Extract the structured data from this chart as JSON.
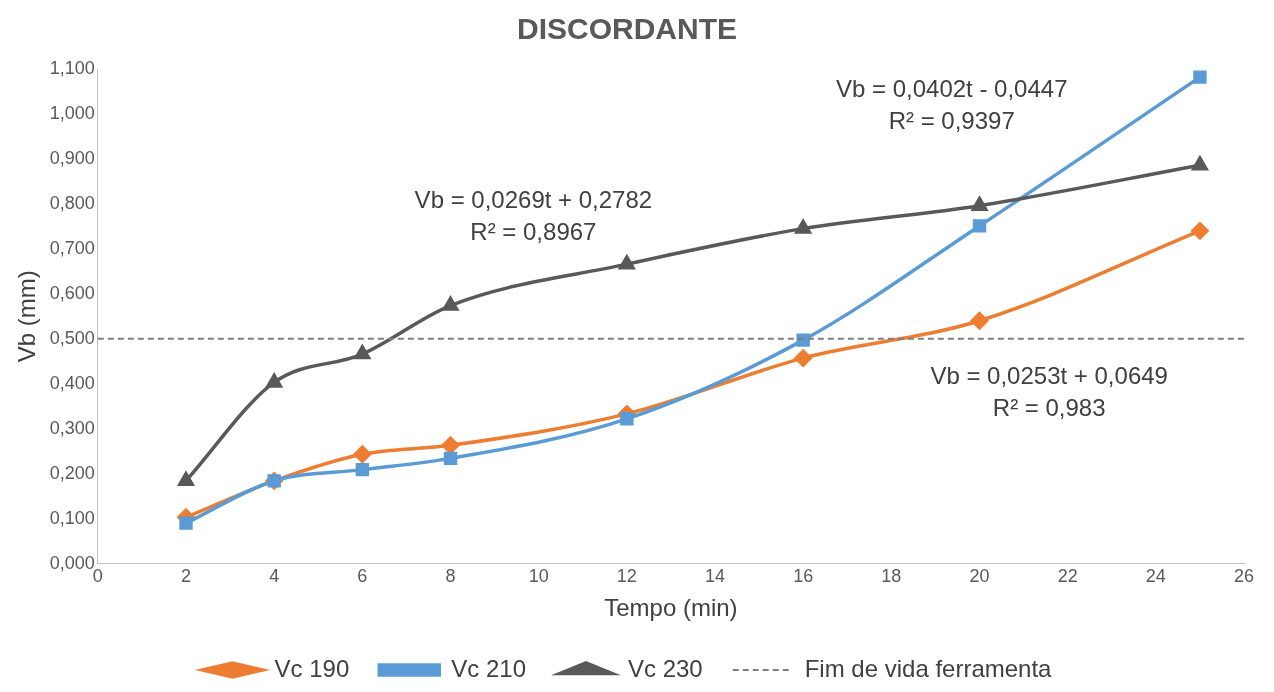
{
  "chart_data": {
    "type": "line",
    "title": "DISCORDANTE",
    "xlabel": "Tempo (min)",
    "ylabel": "Vb (mm)",
    "x": [
      2,
      4,
      6,
      8,
      12,
      16,
      20,
      25
    ],
    "series": [
      {
        "name": "Vc 190",
        "color": "#ed7d31",
        "marker": "diamond",
        "values": [
          0.103,
          0.184,
          0.243,
          0.263,
          0.333,
          0.457,
          0.54,
          0.74
        ]
      },
      {
        "name": "Vc 210",
        "color": "#5b9bd5",
        "marker": "square",
        "values": [
          0.09,
          0.184,
          0.209,
          0.234,
          0.322,
          0.497,
          0.751,
          1.082
        ]
      },
      {
        "name": "Vc 230",
        "color": "#595959",
        "marker": "triangle",
        "values": [
          0.184,
          0.403,
          0.466,
          0.574,
          0.666,
          0.745,
          0.796,
          0.886
        ]
      }
    ],
    "xlim": [
      0,
      26
    ],
    "xticks": [
      0,
      2,
      4,
      6,
      8,
      10,
      12,
      14,
      16,
      18,
      20,
      22,
      24,
      26
    ],
    "ylim": [
      0,
      1.1
    ],
    "yticks": [
      {
        "value": 0,
        "label": "0,000"
      },
      {
        "value": 0.1,
        "label": "0,100"
      },
      {
        "value": 0.2,
        "label": "0,200"
      },
      {
        "value": 0.3,
        "label": "0,300"
      },
      {
        "value": 0.4,
        "label": "0,400"
      },
      {
        "value": 0.5,
        "label": "0,500"
      },
      {
        "value": 0.6,
        "label": "0,600"
      },
      {
        "value": 0.7,
        "label": "0,700"
      },
      {
        "value": 0.8,
        "label": "0,800"
      },
      {
        "value": 0.9,
        "label": "0,900"
      },
      {
        "value": 1.0,
        "label": "1,000"
      },
      {
        "value": 1.1,
        "label": "1,100"
      }
    ],
    "ref_lines": [
      {
        "axis": "y",
        "value": 0.5,
        "label": "Fim de vida ferramenta",
        "color": "#7f7f7f",
        "line_style": "dashed"
      }
    ],
    "annotations": [
      "Vb = 0,0269t + 0,2782\nR² = 0,8967",
      "Vb = 0,0402t - 0,0447\nR² = 0,9397",
      "Vb = 0,0253t + 0,0649\nR² = 0,983"
    ],
    "grid": false,
    "legend": "bottom",
    "line_style": "solid"
  }
}
